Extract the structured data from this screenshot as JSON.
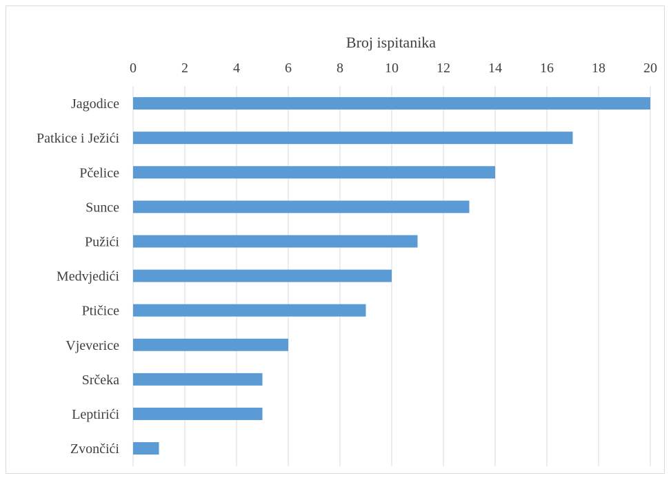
{
  "chart_data": {
    "type": "bar",
    "orientation": "horizontal",
    "title": "",
    "xlabel": "Broj ispitanika",
    "ylabel": "",
    "xlim": [
      0,
      20
    ],
    "x_ticks": [
      0,
      2,
      4,
      6,
      8,
      10,
      12,
      14,
      16,
      18,
      20
    ],
    "x_axis_position": "top",
    "grid": true,
    "legend": "none",
    "bar_color": "#5B9BD5",
    "grid_color": "#d9d9d9",
    "categories": [
      "Jagodice",
      "Patkice i Ježići",
      "Pčelice",
      "Sunce",
      "Pužići",
      "Medvjedići",
      "Ptičice",
      "Vjeverice",
      "Srčeka",
      "Leptirići",
      "Zvončići"
    ],
    "values": [
      20,
      17,
      14,
      13,
      11,
      10,
      9,
      6,
      5,
      5,
      1
    ]
  }
}
